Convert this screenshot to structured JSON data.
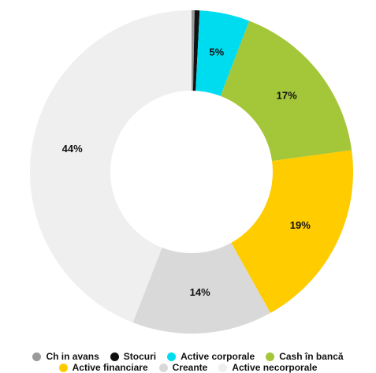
{
  "chart_data": {
    "type": "donut",
    "categories": [
      "Ch in avans",
      "Stocuri",
      "Active corporale",
      "Cash în bancă",
      "Active financiare",
      "Creante",
      "Active necorporale"
    ],
    "values": [
      0.3,
      0.5,
      5,
      17,
      19,
      14,
      44
    ],
    "value_labels": [
      null,
      null,
      "5%",
      "17%",
      "19%",
      "14%",
      "44%"
    ],
    "colors": [
      "#9a9a9a",
      "#111111",
      "#00dcef",
      "#a4c639",
      "#ffcc00",
      "#d9d9d9",
      "#efefef"
    ],
    "legend": "bottom"
  }
}
